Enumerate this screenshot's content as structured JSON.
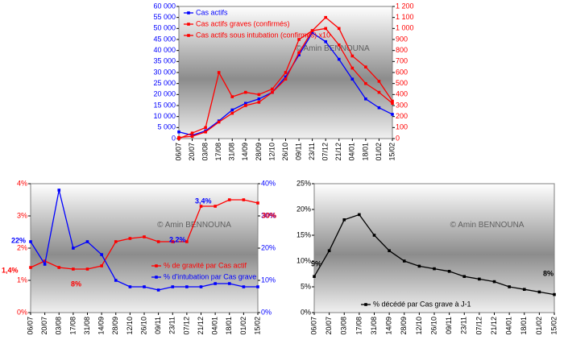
{
  "chart_data": [
    {
      "type": "line",
      "watermark": "© Amin BENNOUNA",
      "categories": [
        "06/07",
        "20/07",
        "03/08",
        "17/08",
        "31/08",
        "14/09",
        "28/09",
        "12/10",
        "26/10",
        "09/11",
        "23/11",
        "07/12",
        "21/12",
        "04/01",
        "18/01",
        "01/02",
        "15/02"
      ],
      "ylim": [
        0,
        60000
      ],
      "yticks": [
        0,
        {
          "value": 5000,
          "label": "5 000"
        },
        {
          "value": 10000,
          "label": "10 000"
        },
        {
          "value": 15000,
          "label": "15 000"
        },
        {
          "value": 20000,
          "label": "20 000"
        },
        {
          "value": 25000,
          "label": "25 000"
        },
        {
          "value": 30000,
          "label": "30 000"
        },
        {
          "value": 35000,
          "label": "35 000"
        },
        {
          "value": 40000,
          "label": "40 000"
        },
        {
          "value": 45000,
          "label": "45 000"
        },
        {
          "value": 50000,
          "label": "50 000"
        },
        {
          "value": 55000,
          "label": "55 000"
        },
        {
          "value": 60000,
          "label": "60 000"
        }
      ],
      "y2lim": [
        0,
        1200
      ],
      "y2ticks": [
        0,
        100,
        200,
        300,
        400,
        500,
        600,
        700,
        800,
        900,
        {
          "value": 1000,
          "label": "1 000"
        },
        {
          "value": 1100,
          "label": "1 100"
        },
        {
          "value": 1200,
          "label": "1 200"
        }
      ],
      "ytick_color": "#0000ff",
      "y2tick_color": "#ff0000",
      "legend": "upper left",
      "series": [
        {
          "name": "Cas actifs",
          "color": "#0000ff",
          "values": [
            3000,
            1500,
            3500,
            8000,
            13000,
            16000,
            18000,
            21000,
            28000,
            38000,
            48000,
            44000,
            36000,
            27000,
            18000,
            14000,
            11000
          ]
        },
        {
          "name": "Cas actifs graves (confirmés)",
          "color": "#ff0000",
          "axis": "y2",
          "values": [
            10,
            20,
            60,
            150,
            230,
            300,
            330,
            420,
            540,
            780,
            980,
            1000,
            850,
            640,
            500,
            420,
            320
          ]
        },
        {
          "name": "Cas actifs sous intubation (confirmés) x10",
          "color": "#ff0000",
          "axis": "y2",
          "values": [
            0,
            50,
            100,
            600,
            380,
            420,
            400,
            450,
            600,
            900,
            980,
            1100,
            1000,
            750,
            650,
            520,
            340
          ]
        }
      ]
    },
    {
      "type": "line",
      "watermark": "© Amin BENNOUNA",
      "categories": [
        "06/07",
        "20/07",
        "03/08",
        "17/08",
        "31/08",
        "14/09",
        "28/09",
        "12/10",
        "26/10",
        "09/11",
        "23/11",
        "07/12",
        "21/12",
        "04/01",
        "18/01",
        "01/02",
        "15/02"
      ],
      "ylim": [
        0,
        4
      ],
      "yticks": [
        {
          "value": 0,
          "label": "0%"
        },
        {
          "value": 1,
          "label": "1%"
        },
        {
          "value": 2,
          "label": "2%"
        },
        {
          "value": 3,
          "label": "3%"
        },
        {
          "value": 4,
          "label": "4%"
        }
      ],
      "y2lim": [
        0,
        40
      ],
      "y2ticks": [
        {
          "value": 0,
          "label": "0%"
        },
        {
          "value": 10,
          "label": "10%"
        },
        {
          "value": 20,
          "label": "20%"
        },
        {
          "value": 30,
          "label": "30%"
        },
        {
          "value": 40,
          "label": "40%"
        }
      ],
      "ytick_color": "#ff0000",
      "y2tick_color": "#0000ff",
      "legend": "lower right",
      "annotations": [
        "22%",
        "1,4%",
        "2,2%",
        "8%",
        "3,4%",
        "30%"
      ],
      "series": [
        {
          "name": "% de gravité par Cas actif",
          "color": "#ff0000",
          "values": [
            1.4,
            1.6,
            1.4,
            1.35,
            1.35,
            1.45,
            2.2,
            2.3,
            2.35,
            2.2,
            2.2,
            2.2,
            3.3,
            3.3,
            3.5,
            3.5,
            3.4
          ]
        },
        {
          "name": "% d'intubation par Cas grave",
          "color": "#0000ff",
          "axis": "y2",
          "values": [
            22,
            15,
            38,
            20,
            22,
            18,
            10,
            8,
            8,
            7,
            8,
            8,
            8,
            9,
            9,
            8,
            8
          ]
        }
      ]
    },
    {
      "type": "line",
      "watermark": "© Amin BENNOUNA",
      "categories": [
        "06/07",
        "20/07",
        "03/08",
        "17/08",
        "31/08",
        "14/09",
        "28/09",
        "12/10",
        "26/10",
        "09/11",
        "23/11",
        "07/12",
        "21/12",
        "04/01",
        "18/01",
        "01/02",
        "15/02"
      ],
      "ylim": [
        0,
        25
      ],
      "yticks": [
        {
          "value": 0,
          "label": "0%"
        },
        {
          "value": 5,
          "label": "5%"
        },
        {
          "value": 10,
          "label": "10%"
        },
        {
          "value": 15,
          "label": "15%"
        },
        {
          "value": 20,
          "label": "20%"
        },
        {
          "value": 25,
          "label": "25%"
        }
      ],
      "ytick_color": "#000000",
      "legend": "lower center",
      "annotations": [
        "9%",
        "8%"
      ],
      "series": [
        {
          "name": "% décédé par Cas grave à J-1",
          "color": "#000000",
          "values": [
            7,
            12,
            18,
            19,
            15,
            12,
            10,
            9,
            8.5,
            8,
            7,
            6.5,
            6,
            5,
            4.5,
            4,
            3.5
          ]
        }
      ]
    }
  ]
}
